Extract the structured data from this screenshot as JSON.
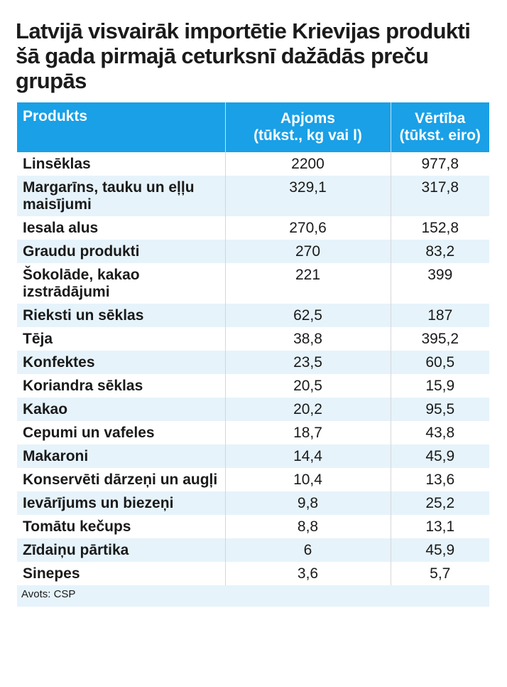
{
  "title": "Latvijā visvairāk importētie Krievijas produkti šā gada pirmajā ceturksnī dažādās preču grupās",
  "headers": {
    "product": "Produkts",
    "volume_line1": "Apjoms",
    "volume_line2": "(tūkst., kg vai l)",
    "value_line1": "Vērtība",
    "value_line2": "(tūkst. eiro)"
  },
  "chart_data": {
    "type": "table",
    "title": "Latvijā visvairāk importētie Krievijas produkti šā gada pirmajā ceturksnī dažādās preču grupās",
    "columns": [
      "Produkts",
      "Apjoms (tūkst., kg vai l)",
      "Vērtība (tūkst. eiro)"
    ],
    "rows": [
      [
        "Linsēklas",
        "2200",
        "977,8"
      ],
      [
        "Margarīns, tauku un eļļu maisījumi",
        "329,1",
        "317,8"
      ],
      [
        "Iesala alus",
        "270,6",
        "152,8"
      ],
      [
        "Graudu produkti",
        "270",
        "83,2"
      ],
      [
        "Šokolāde, kakao izstrādājumi",
        "221",
        "399"
      ],
      [
        "Rieksti un sēklas",
        "62,5",
        "187"
      ],
      [
        "Tēja",
        "38,8",
        "395,2"
      ],
      [
        "Konfektes",
        "23,5",
        "60,5"
      ],
      [
        "Koriandra sēklas",
        "20,5",
        "15,9"
      ],
      [
        "Kakao",
        "20,2",
        "95,5"
      ],
      [
        "Cepumi un vafeles",
        "18,7",
        "43,8"
      ],
      [
        "Makaroni",
        "14,4",
        "45,9"
      ],
      [
        "Konservēti dārzeņi un augļi",
        "10,4",
        "13,6"
      ],
      [
        "Ievārījums un biezeņi",
        "9,8",
        "25,2"
      ],
      [
        "Tomātu kečups",
        "8,8",
        "13,1"
      ],
      [
        "Zīdaiņu pārtika",
        "6",
        "45,9"
      ],
      [
        "Sinepes",
        "3,6",
        "5,7"
      ]
    ]
  },
  "source": "Avots: CSP",
  "colors": {
    "header_bg": "#1aa0e6",
    "row_alt_bg": "#e6f3fb",
    "header_text": "#ffffff"
  }
}
